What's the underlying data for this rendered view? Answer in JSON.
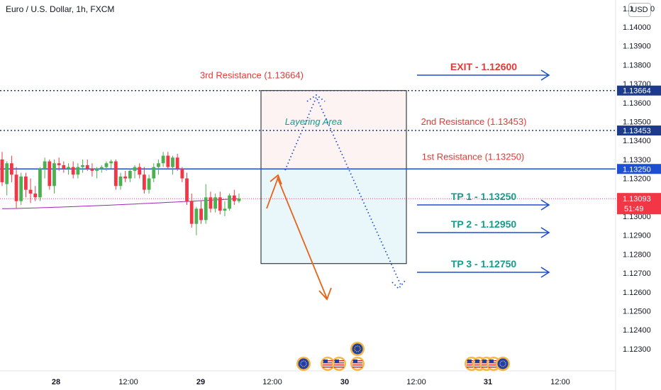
{
  "header": {
    "title": "Euro / U.S. Dollar, 1h, FXCM",
    "currency_badge": "USD"
  },
  "colors": {
    "bull": "#26a69a",
    "bear": "#ef5350",
    "candle_bull_body": "#4caf50",
    "candle_bear_body": "#f23645",
    "resistance_text": "#e53935",
    "blue_line": "#1e4fd1",
    "dotted_level": "#1e3a8a",
    "tp_text": "#159c8a",
    "exit_text": "#e53935",
    "arrow_orange": "#e8631a",
    "ma_purple": "#9c27b0",
    "current_price_bg": "#f23645",
    "axis_text": "#131722"
  },
  "chart_data": {
    "type": "candlestick",
    "y_range": [
      1.1225,
      1.141
    ],
    "y_ticks": [
      "1.14000",
      "1.13900",
      "1.13800",
      "1.13700",
      "1.13600",
      "1.13500",
      "1.13400",
      "1.13300",
      "1.13200",
      "1.13100",
      "1.13000",
      "1.12900",
      "1.12800",
      "1.12700",
      "1.12600",
      "1.12500",
      "1.12400",
      "1.12300"
    ],
    "y_top_partial_label": "1.1",
    "y_top_partial_label_right": "0",
    "x_ticks": [
      "28",
      "12:00",
      "29",
      "12:00",
      "30",
      "12:00",
      "31",
      "12:00"
    ],
    "bold_x_ticks": [
      "28",
      "29",
      "30",
      "31"
    ],
    "candles": [
      {
        "o": 1.133,
        "h": 1.1334,
        "l": 1.1316,
        "c": 1.1318
      },
      {
        "o": 1.1317,
        "h": 1.1329,
        "l": 1.1311,
        "c": 1.1328
      },
      {
        "o": 1.1328,
        "h": 1.1332,
        "l": 1.1318,
        "c": 1.1322
      },
      {
        "o": 1.1322,
        "h": 1.1326,
        "l": 1.1304,
        "c": 1.1308
      },
      {
        "o": 1.1308,
        "h": 1.1323,
        "l": 1.1306,
        "c": 1.1321
      },
      {
        "o": 1.1321,
        "h": 1.1323,
        "l": 1.131,
        "c": 1.1314
      },
      {
        "o": 1.1314,
        "h": 1.132,
        "l": 1.1307,
        "c": 1.1312
      },
      {
        "o": 1.1312,
        "h": 1.1316,
        "l": 1.1308,
        "c": 1.131
      },
      {
        "o": 1.131,
        "h": 1.1326,
        "l": 1.1308,
        "c": 1.1325
      },
      {
        "o": 1.1325,
        "h": 1.1331,
        "l": 1.132,
        "c": 1.1329
      },
      {
        "o": 1.1329,
        "h": 1.133,
        "l": 1.1314,
        "c": 1.1316
      },
      {
        "o": 1.1316,
        "h": 1.133,
        "l": 1.1312,
        "c": 1.1328
      },
      {
        "o": 1.1328,
        "h": 1.1331,
        "l": 1.1324,
        "c": 1.1327
      },
      {
        "o": 1.1327,
        "h": 1.1329,
        "l": 1.1323,
        "c": 1.1325
      },
      {
        "o": 1.1325,
        "h": 1.1328,
        "l": 1.1322,
        "c": 1.1326
      },
      {
        "o": 1.1326,
        "h": 1.1329,
        "l": 1.132,
        "c": 1.1322
      },
      {
        "o": 1.1322,
        "h": 1.1328,
        "l": 1.132,
        "c": 1.1326
      },
      {
        "o": 1.1326,
        "h": 1.133,
        "l": 1.1323,
        "c": 1.1327
      },
      {
        "o": 1.1327,
        "h": 1.133,
        "l": 1.1324,
        "c": 1.1325
      },
      {
        "o": 1.1325,
        "h": 1.1328,
        "l": 1.1321,
        "c": 1.1324
      },
      {
        "o": 1.1324,
        "h": 1.1326,
        "l": 1.132,
        "c": 1.1325
      },
      {
        "o": 1.1325,
        "h": 1.1327,
        "l": 1.1323,
        "c": 1.1326
      },
      {
        "o": 1.1326,
        "h": 1.1329,
        "l": 1.1324,
        "c": 1.1328
      },
      {
        "o": 1.1328,
        "h": 1.133,
        "l": 1.1325,
        "c": 1.1329
      },
      {
        "o": 1.1329,
        "h": 1.133,
        "l": 1.1314,
        "c": 1.1316
      },
      {
        "o": 1.1316,
        "h": 1.1323,
        "l": 1.1314,
        "c": 1.1321
      },
      {
        "o": 1.1321,
        "h": 1.1324,
        "l": 1.1318,
        "c": 1.132
      },
      {
        "o": 1.132,
        "h": 1.1325,
        "l": 1.1318,
        "c": 1.1324
      },
      {
        "o": 1.1324,
        "h": 1.1327,
        "l": 1.132,
        "c": 1.1326
      },
      {
        "o": 1.1326,
        "h": 1.1328,
        "l": 1.132,
        "c": 1.1322
      },
      {
        "o": 1.1322,
        "h": 1.1326,
        "l": 1.1312,
        "c": 1.1314
      },
      {
        "o": 1.1314,
        "h": 1.1322,
        "l": 1.1312,
        "c": 1.132
      },
      {
        "o": 1.132,
        "h": 1.1328,
        "l": 1.1318,
        "c": 1.1326
      },
      {
        "o": 1.1326,
        "h": 1.133,
        "l": 1.1322,
        "c": 1.1328
      },
      {
        "o": 1.1328,
        "h": 1.1334,
        "l": 1.1326,
        "c": 1.1332
      },
      {
        "o": 1.1332,
        "h": 1.1334,
        "l": 1.1325,
        "c": 1.1326
      },
      {
        "o": 1.1326,
        "h": 1.1332,
        "l": 1.1322,
        "c": 1.1331
      },
      {
        "o": 1.1331,
        "h": 1.1333,
        "l": 1.1324,
        "c": 1.1325
      },
      {
        "o": 1.1325,
        "h": 1.1326,
        "l": 1.1318,
        "c": 1.132
      },
      {
        "o": 1.132,
        "h": 1.1323,
        "l": 1.1306,
        "c": 1.1308
      },
      {
        "o": 1.1308,
        "h": 1.1312,
        "l": 1.1294,
        "c": 1.1296
      },
      {
        "o": 1.1296,
        "h": 1.1305,
        "l": 1.129,
        "c": 1.1304
      },
      {
        "o": 1.1304,
        "h": 1.1308,
        "l": 1.1296,
        "c": 1.1298
      },
      {
        "o": 1.1298,
        "h": 1.1317,
        "l": 1.1296,
        "c": 1.131
      },
      {
        "o": 1.131,
        "h": 1.1313,
        "l": 1.1302,
        "c": 1.1304
      },
      {
        "o": 1.1304,
        "h": 1.1312,
        "l": 1.1302,
        "c": 1.131
      },
      {
        "o": 1.131,
        "h": 1.1313,
        "l": 1.1301,
        "c": 1.1303
      },
      {
        "o": 1.1303,
        "h": 1.1308,
        "l": 1.13,
        "c": 1.1304
      },
      {
        "o": 1.1304,
        "h": 1.1312,
        "l": 1.1303,
        "c": 1.1311
      },
      {
        "o": 1.1311,
        "h": 1.1314,
        "l": 1.1306,
        "c": 1.1308
      },
      {
        "o": 1.1308,
        "h": 1.1312,
        "l": 1.1307,
        "c": 1.13093
      }
    ],
    "levels": {
      "third_resistance": 1.13664,
      "second_resistance": 1.13453,
      "first_resistance": 1.1325,
      "current": 1.13093
    },
    "box_top": 1.13664,
    "box_mid": 1.1325,
    "box_bottom": 1.1275,
    "axis_level_labels": [
      "1.13664",
      "1.13453",
      "1.13250"
    ],
    "current_price_label": "1.13093",
    "countdown": "51:49",
    "annotations": {
      "third_resistance": "3rd Resistance (1.13664)",
      "second_resistance": "2nd Resistance (1.13453)",
      "first_resistance": "1st Resistance (1.13250)",
      "layering_area": "Layering Area",
      "exit": "EXIT - 1.12600",
      "tp1": "TP 1 - 1.13250",
      "tp2": "TP 2 - 1.12950",
      "tp3": "TP 3 - 1.12750"
    },
    "event_icons": [
      {
        "time_slot": "29 12:00",
        "flag": "eu"
      },
      {
        "time_slot": "30",
        "flag": "us"
      },
      {
        "time_slot": "30",
        "flag": "us"
      },
      {
        "time_slot": "30",
        "flag": "us"
      },
      {
        "time_slot": "30",
        "flag": "eu"
      },
      {
        "time_slot": "31",
        "flag": "us"
      },
      {
        "time_slot": "31",
        "flag": "us"
      },
      {
        "time_slot": "31",
        "flag": "us"
      },
      {
        "time_slot": "31",
        "flag": "us"
      },
      {
        "time_slot": "31",
        "flag": "eu"
      }
    ]
  }
}
